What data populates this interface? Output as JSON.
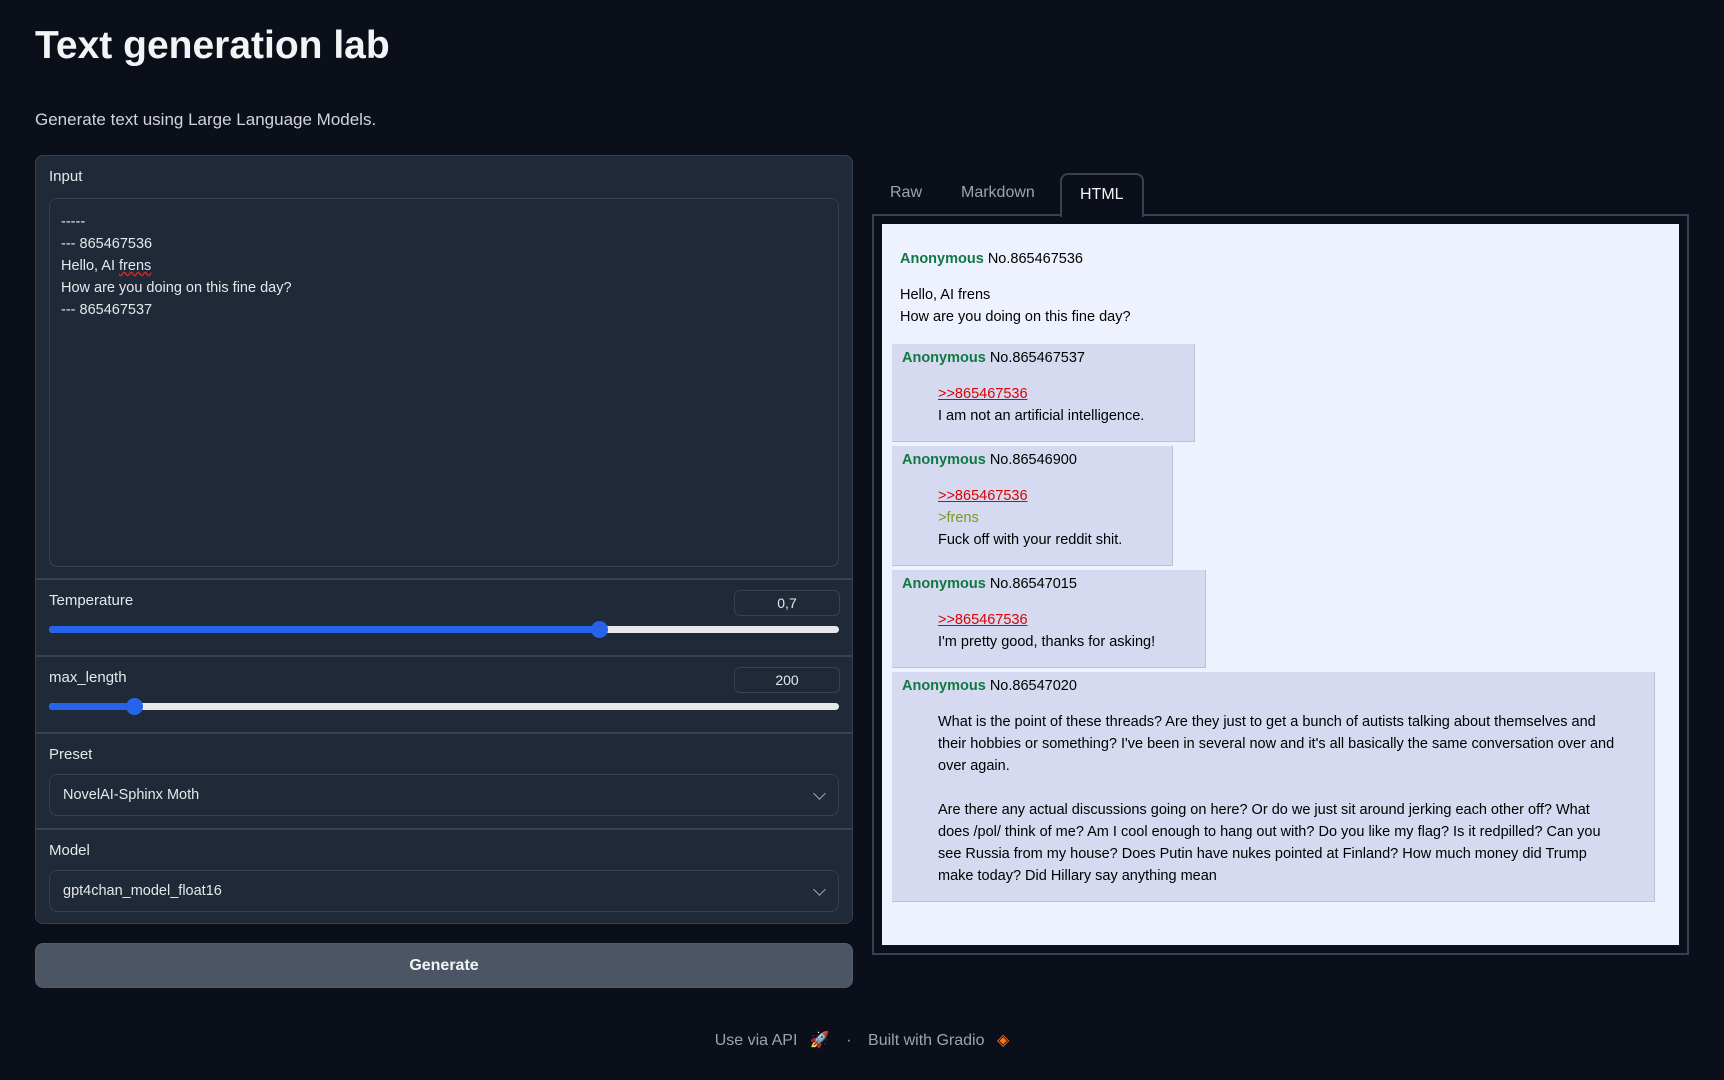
{
  "header": {
    "title": "Text generation lab",
    "subtitle": "Generate text using Large Language Models."
  },
  "input": {
    "label": "Input",
    "lines": [
      "-----",
      "--- 865467536",
      "Hello, AI ",
      "How are you doing on this fine day?",
      "--- 865467537"
    ],
    "misspelled": "frens"
  },
  "temperature": {
    "label": "Temperature",
    "value": "0,7",
    "fill_fraction": 0.696
  },
  "max_length": {
    "label": "max_length",
    "value": "200",
    "fill_fraction": 0.107
  },
  "preset": {
    "label": "Preset",
    "value": "NovelAI-Sphinx Moth"
  },
  "model": {
    "label": "Model",
    "value": "gpt4chan_model_float16"
  },
  "generate_label": "Generate",
  "colors": {
    "accent": "#2563eb",
    "name_green": "#117743",
    "quote_red": "#dd0000",
    "greentext": "#789922",
    "reply_bg": "#d6daf0"
  },
  "tabs": [
    {
      "label": "Raw"
    },
    {
      "label": "Markdown"
    },
    {
      "label": "HTML",
      "active": true
    }
  ],
  "thread": {
    "op": {
      "name": "Anonymous",
      "no": "No.865467536",
      "lines": [
        "Hello, AI frens",
        "How are you doing on this fine day?"
      ]
    },
    "replies": [
      {
        "name": "Anonymous",
        "no": "No.865467537",
        "quote": ">>865467536",
        "greentext": "",
        "paragraphs": [
          "I am not an artificial intelligence."
        ]
      },
      {
        "name": "Anonymous",
        "no": "No.86546900",
        "quote": ">>865467536",
        "greentext": ">frens",
        "paragraphs": [
          "Fuck off with your reddit shit."
        ]
      },
      {
        "name": "Anonymous",
        "no": "No.86547015",
        "quote": ">>865467536",
        "greentext": "",
        "paragraphs": [
          "I'm pretty good, thanks for asking!"
        ]
      },
      {
        "name": "Anonymous",
        "no": "No.86547020",
        "quote": "",
        "greentext": "",
        "paragraphs": [
          "What is the point of these threads? Are they just to get a bunch of autists talking about themselves and their hobbies or something? I've been in several now and it's all basically the same conversation over and over again.",
          "Are there any actual discussions going on here? Or do we just sit around jerking each other off? What does /pol/ think of me? Am I cool enough to hang out with? Do you like my flag? Is it redpilled? Can you see Russia from my house? Does Putin have nukes pointed at Finland? How much money did Trump make today? Did Hillary say anything mean"
        ]
      }
    ]
  },
  "footer": {
    "api": "Use via API",
    "separator": "·",
    "built": "Built with Gradio",
    "api_icon": "rocket-icon",
    "gradio_icon": "gradio-logo-icon"
  }
}
